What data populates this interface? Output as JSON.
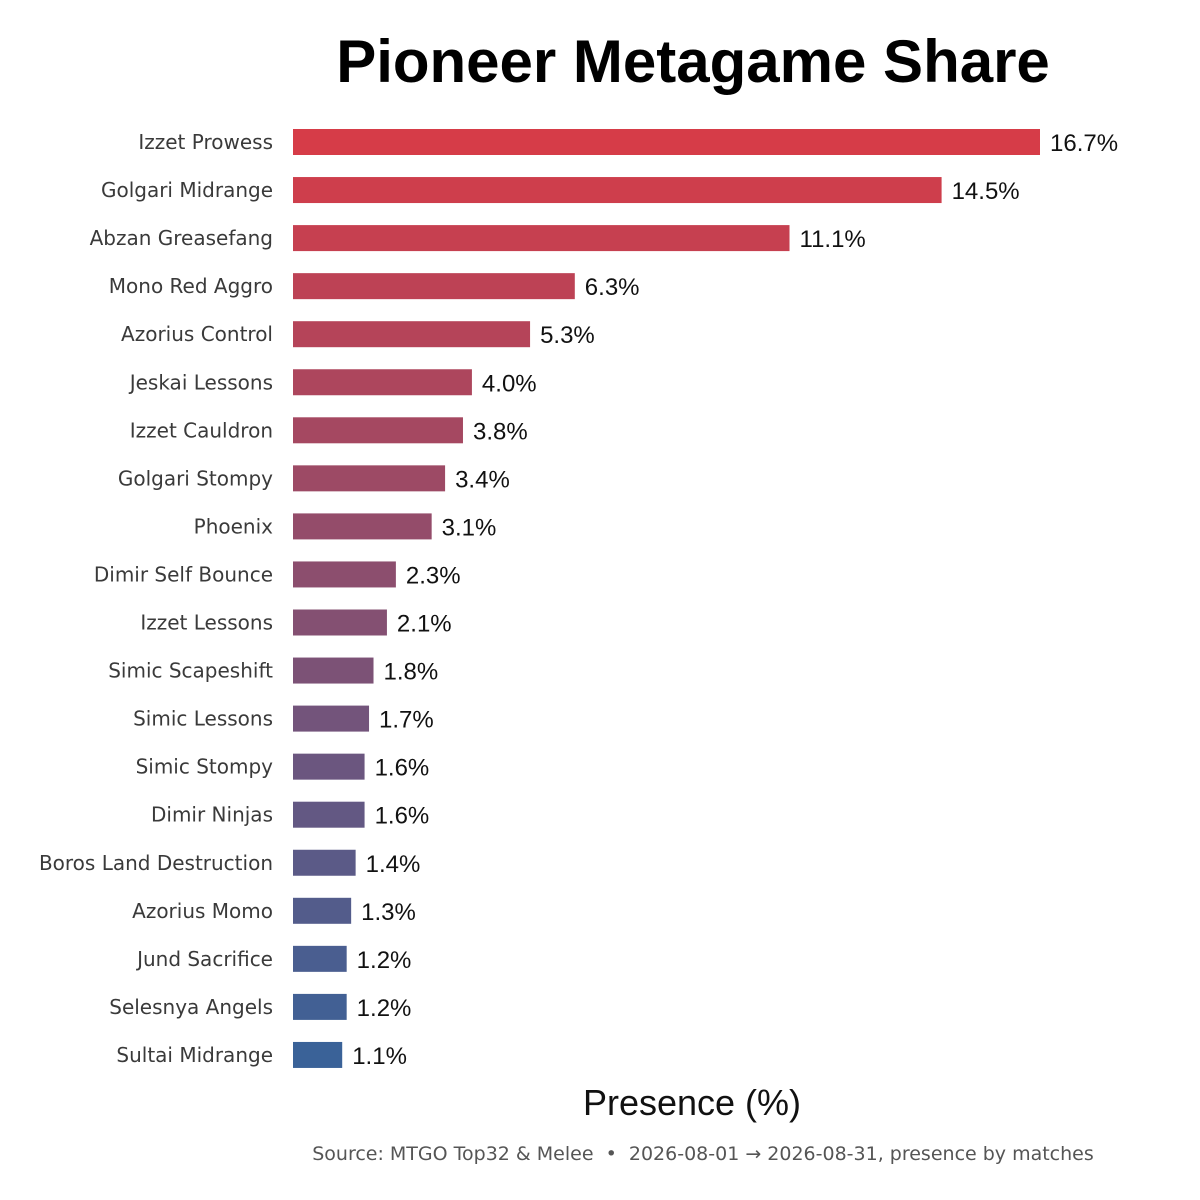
{
  "chart_data": {
    "type": "bar",
    "orientation": "horizontal",
    "title": "Pioneer Metagame Share",
    "xlabel": "Presence (%)",
    "ylabel": "",
    "source": "Source: MTGO Top32 & Melee  •  2026-08-01 → 2026-08-31, presence by matches",
    "categories": [
      "Izzet Prowess",
      "Golgari Midrange",
      "Abzan Greasefang",
      "Mono Red Aggro",
      "Azorius Control",
      "Jeskai Lessons",
      "Izzet Cauldron",
      "Golgari Stompy",
      "Phoenix",
      "Dimir Self Bounce",
      "Izzet Lessons",
      "Simic Scapeshift",
      "Simic Lessons",
      "Simic Stompy",
      "Dimir Ninjas",
      "Boros Land Destruction",
      "Azorius Momo",
      "Jund Sacrifice",
      "Selesnya Angels",
      "Sultai Midrange"
    ],
    "values": [
      16.7,
      14.5,
      11.1,
      6.3,
      5.3,
      4.0,
      3.8,
      3.4,
      3.1,
      2.3,
      2.1,
      1.8,
      1.7,
      1.6,
      1.6,
      1.4,
      1.3,
      1.2,
      1.2,
      1.1
    ],
    "value_labels": [
      "16.7%",
      "14.5%",
      "11.1%",
      "6.3%",
      "5.3%",
      "4.0%",
      "3.8%",
      "3.4%",
      "3.1%",
      "2.3%",
      "2.1%",
      "1.8%",
      "1.7%",
      "1.6%",
      "1.6%",
      "1.4%",
      "1.3%",
      "1.2%",
      "1.2%",
      "1.1%"
    ],
    "xlim": [
      0,
      16.7
    ],
    "grid": false,
    "legend": "none",
    "colors": {
      "gradient_start": "#d63c48",
      "gradient_end": "#3a6298"
    }
  }
}
